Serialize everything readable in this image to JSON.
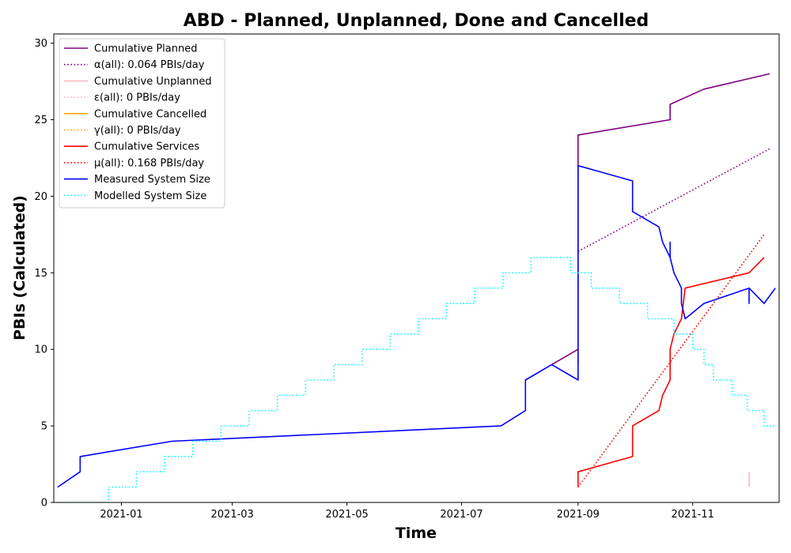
{
  "chart_data": {
    "type": "line",
    "title": "ABD - Planned, Unplanned, Done  and Cancelled",
    "xlabel": "Time",
    "ylabel": "PBIs (Calculated)",
    "xlim": [
      "2020-11-26",
      "2021-12-17"
    ],
    "ylim": [
      0,
      30.6
    ],
    "x_ticks": [
      {
        "date": "2021-01-01",
        "label": "2021-01"
      },
      {
        "date": "2021-03-01",
        "label": "2021-03"
      },
      {
        "date": "2021-05-01",
        "label": "2021-05"
      },
      {
        "date": "2021-07-01",
        "label": "2021-07"
      },
      {
        "date": "2021-09-01",
        "label": "2021-09"
      },
      {
        "date": "2021-11-01",
        "label": "2021-11"
      }
    ],
    "y_ticks": [
      0,
      5,
      10,
      15,
      20,
      25,
      30
    ],
    "grid": false,
    "legend_position": "top-left",
    "series": [
      {
        "name": "Cumulative Planned",
        "color": "#800080",
        "style": "solid",
        "points": [
          [
            "2021-08-18",
            9
          ],
          [
            "2021-09-01",
            10
          ],
          [
            "2021-09-01",
            9
          ],
          [
            "2021-09-01",
            24
          ],
          [
            "2021-10-20",
            25
          ],
          [
            "2021-10-20",
            26
          ],
          [
            "2021-11-07",
            27
          ],
          [
            "2021-12-12",
            28
          ]
        ]
      },
      {
        "name": "α(all): 0.064 PBIs/day",
        "color": "#800080",
        "style": "dotted",
        "points": [
          [
            "2021-09-01",
            16.4
          ],
          [
            "2021-12-12",
            23.1
          ]
        ]
      },
      {
        "name": "Cumulative Unplanned",
        "color": "#ffb6c1",
        "style": "solid",
        "points": [
          [
            "2021-12-01",
            1
          ],
          [
            "2021-12-01",
            2
          ]
        ]
      },
      {
        "name": "ε(all): 0 PBIs/day",
        "color": "#ffb6c1",
        "style": "dotted",
        "points": []
      },
      {
        "name": "Cumulative Cancelled",
        "color": "#ffa500",
        "style": "solid",
        "points": []
      },
      {
        "name": "γ(all): 0 PBIs/day",
        "color": "#ffa500",
        "style": "dotted",
        "points": []
      },
      {
        "name": "Cumulative Services",
        "color": "#ff0000",
        "style": "solid",
        "points": [
          [
            "2021-09-01",
            1
          ],
          [
            "2021-09-01",
            2
          ],
          [
            "2021-09-30",
            3
          ],
          [
            "2021-09-30",
            5
          ],
          [
            "2021-10-14",
            6
          ],
          [
            "2021-10-16",
            7
          ],
          [
            "2021-10-20",
            8
          ],
          [
            "2021-10-20",
            10
          ],
          [
            "2021-10-22",
            11
          ],
          [
            "2021-10-26",
            12
          ],
          [
            "2021-10-28",
            14
          ],
          [
            "2021-12-01",
            15
          ],
          [
            "2021-12-09",
            16
          ]
        ]
      },
      {
        "name": "μ(all): 0.168 PBIs/day",
        "color": "#ff0000",
        "style": "dotted",
        "points": [
          [
            "2021-09-01",
            1
          ],
          [
            "2021-12-09",
            17.5
          ]
        ]
      },
      {
        "name": "Measured System Size",
        "color": "#0000ff",
        "style": "solid",
        "points": [
          [
            "2020-11-28",
            1
          ],
          [
            "2020-12-10",
            2
          ],
          [
            "2020-12-10",
            3
          ],
          [
            "2021-01-28",
            4
          ],
          [
            "2021-07-22",
            5
          ],
          [
            "2021-08-04",
            6
          ],
          [
            "2021-08-04",
            8
          ],
          [
            "2021-08-18",
            9
          ],
          [
            "2021-09-01",
            8
          ],
          [
            "2021-09-01",
            22
          ],
          [
            "2021-09-30",
            21
          ],
          [
            "2021-09-30",
            19
          ],
          [
            "2021-10-14",
            18
          ],
          [
            "2021-10-16",
            17
          ],
          [
            "2021-10-20",
            16
          ],
          [
            "2021-10-20",
            17
          ],
          [
            "2021-10-20",
            16
          ],
          [
            "2021-10-22",
            15
          ],
          [
            "2021-10-26",
            14
          ],
          [
            "2021-10-26",
            13
          ],
          [
            "2021-10-28",
            12
          ],
          [
            "2021-11-07",
            13
          ],
          [
            "2021-12-01",
            14
          ],
          [
            "2021-12-01",
            13
          ],
          [
            "2021-12-01",
            14
          ],
          [
            "2021-12-09",
            13
          ],
          [
            "2021-12-15",
            14
          ]
        ]
      },
      {
        "name": "Modelled System Size",
        "color": "#00ffff",
        "style": "dotted",
        "points": [
          [
            "2020-11-28",
            0
          ],
          [
            "2020-12-25",
            0
          ],
          [
            "2020-12-25",
            1
          ],
          [
            "2021-01-09",
            1
          ],
          [
            "2021-01-09",
            2
          ],
          [
            "2021-01-24",
            2
          ],
          [
            "2021-01-24",
            3
          ],
          [
            "2021-02-08",
            3
          ],
          [
            "2021-02-08",
            4
          ],
          [
            "2021-02-23",
            4
          ],
          [
            "2021-02-23",
            5
          ],
          [
            "2021-03-10",
            5
          ],
          [
            "2021-03-10",
            6
          ],
          [
            "2021-03-25",
            6
          ],
          [
            "2021-03-25",
            7
          ],
          [
            "2021-04-09",
            7
          ],
          [
            "2021-04-09",
            8
          ],
          [
            "2021-04-24",
            8
          ],
          [
            "2021-04-24",
            9
          ],
          [
            "2021-05-09",
            9
          ],
          [
            "2021-05-09",
            10
          ],
          [
            "2021-05-24",
            10
          ],
          [
            "2021-05-24",
            11
          ],
          [
            "2021-06-08",
            11
          ],
          [
            "2021-06-08",
            12
          ],
          [
            "2021-06-23",
            12
          ],
          [
            "2021-06-23",
            13
          ],
          [
            "2021-07-08",
            13
          ],
          [
            "2021-07-08",
            14
          ],
          [
            "2021-07-23",
            14
          ],
          [
            "2021-07-23",
            15
          ],
          [
            "2021-08-07",
            15
          ],
          [
            "2021-08-07",
            16
          ],
          [
            "2021-08-28",
            16
          ],
          [
            "2021-08-28",
            15
          ],
          [
            "2021-09-08",
            15
          ],
          [
            "2021-09-08",
            14
          ],
          [
            "2021-09-23",
            14
          ],
          [
            "2021-09-23",
            13
          ],
          [
            "2021-10-08",
            13
          ],
          [
            "2021-10-08",
            12
          ],
          [
            "2021-10-22",
            12
          ],
          [
            "2021-10-22",
            11
          ],
          [
            "2021-11-01",
            11
          ],
          [
            "2021-11-01",
            10
          ],
          [
            "2021-11-07",
            10
          ],
          [
            "2021-11-07",
            9
          ],
          [
            "2021-11-12",
            9
          ],
          [
            "2021-11-12",
            8
          ],
          [
            "2021-11-22",
            8
          ],
          [
            "2021-11-22",
            7
          ],
          [
            "2021-11-30",
            7
          ],
          [
            "2021-11-30",
            6
          ],
          [
            "2021-12-09",
            6
          ],
          [
            "2021-12-09",
            5
          ],
          [
            "2021-12-15",
            5
          ]
        ]
      }
    ]
  }
}
